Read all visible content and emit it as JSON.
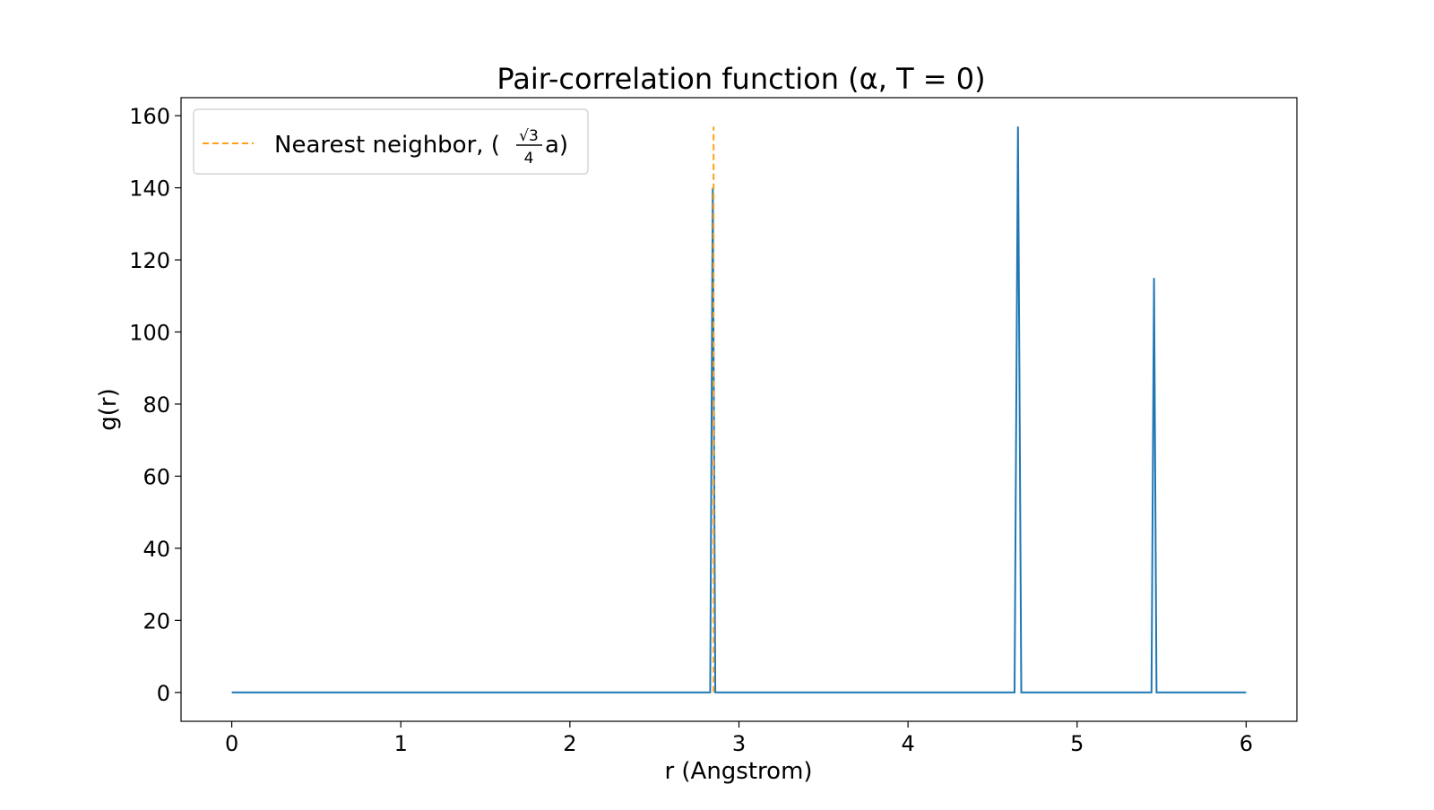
{
  "chart_data": {
    "type": "line",
    "title": "Pair-correlation function (α, T = 0)",
    "xlabel": "r (Angstrom)",
    "ylabel": "g(r)",
    "xlim": [
      -0.3,
      6.3
    ],
    "ylim": [
      -8,
      165
    ],
    "xticks": [
      0,
      1,
      2,
      3,
      4,
      5,
      6
    ],
    "yticks": [
      0,
      20,
      40,
      60,
      80,
      100,
      120,
      140,
      160
    ],
    "grid": false,
    "legend_position": "top-left",
    "series": [
      {
        "name": "",
        "color": "#1f77b4",
        "style": "solid",
        "x": [
          0,
          2.83,
          2.845,
          2.86,
          4.63,
          4.65,
          4.67,
          5.44,
          5.455,
          5.47,
          6.0
        ],
        "y": [
          0,
          0,
          140,
          0,
          0,
          157,
          0,
          0,
          115,
          0,
          0
        ]
      },
      {
        "name": "Nearest neighbor, (√3/4 a)",
        "color": "#ff9f1c",
        "style": "dashed",
        "x": [
          2.85,
          2.85
        ],
        "y": [
          0,
          157
        ]
      }
    ]
  },
  "legend": {
    "text_prefix": "Nearest neighbor, (",
    "frac_num": "√3",
    "frac_den": "4",
    "text_suffix": " a)"
  }
}
